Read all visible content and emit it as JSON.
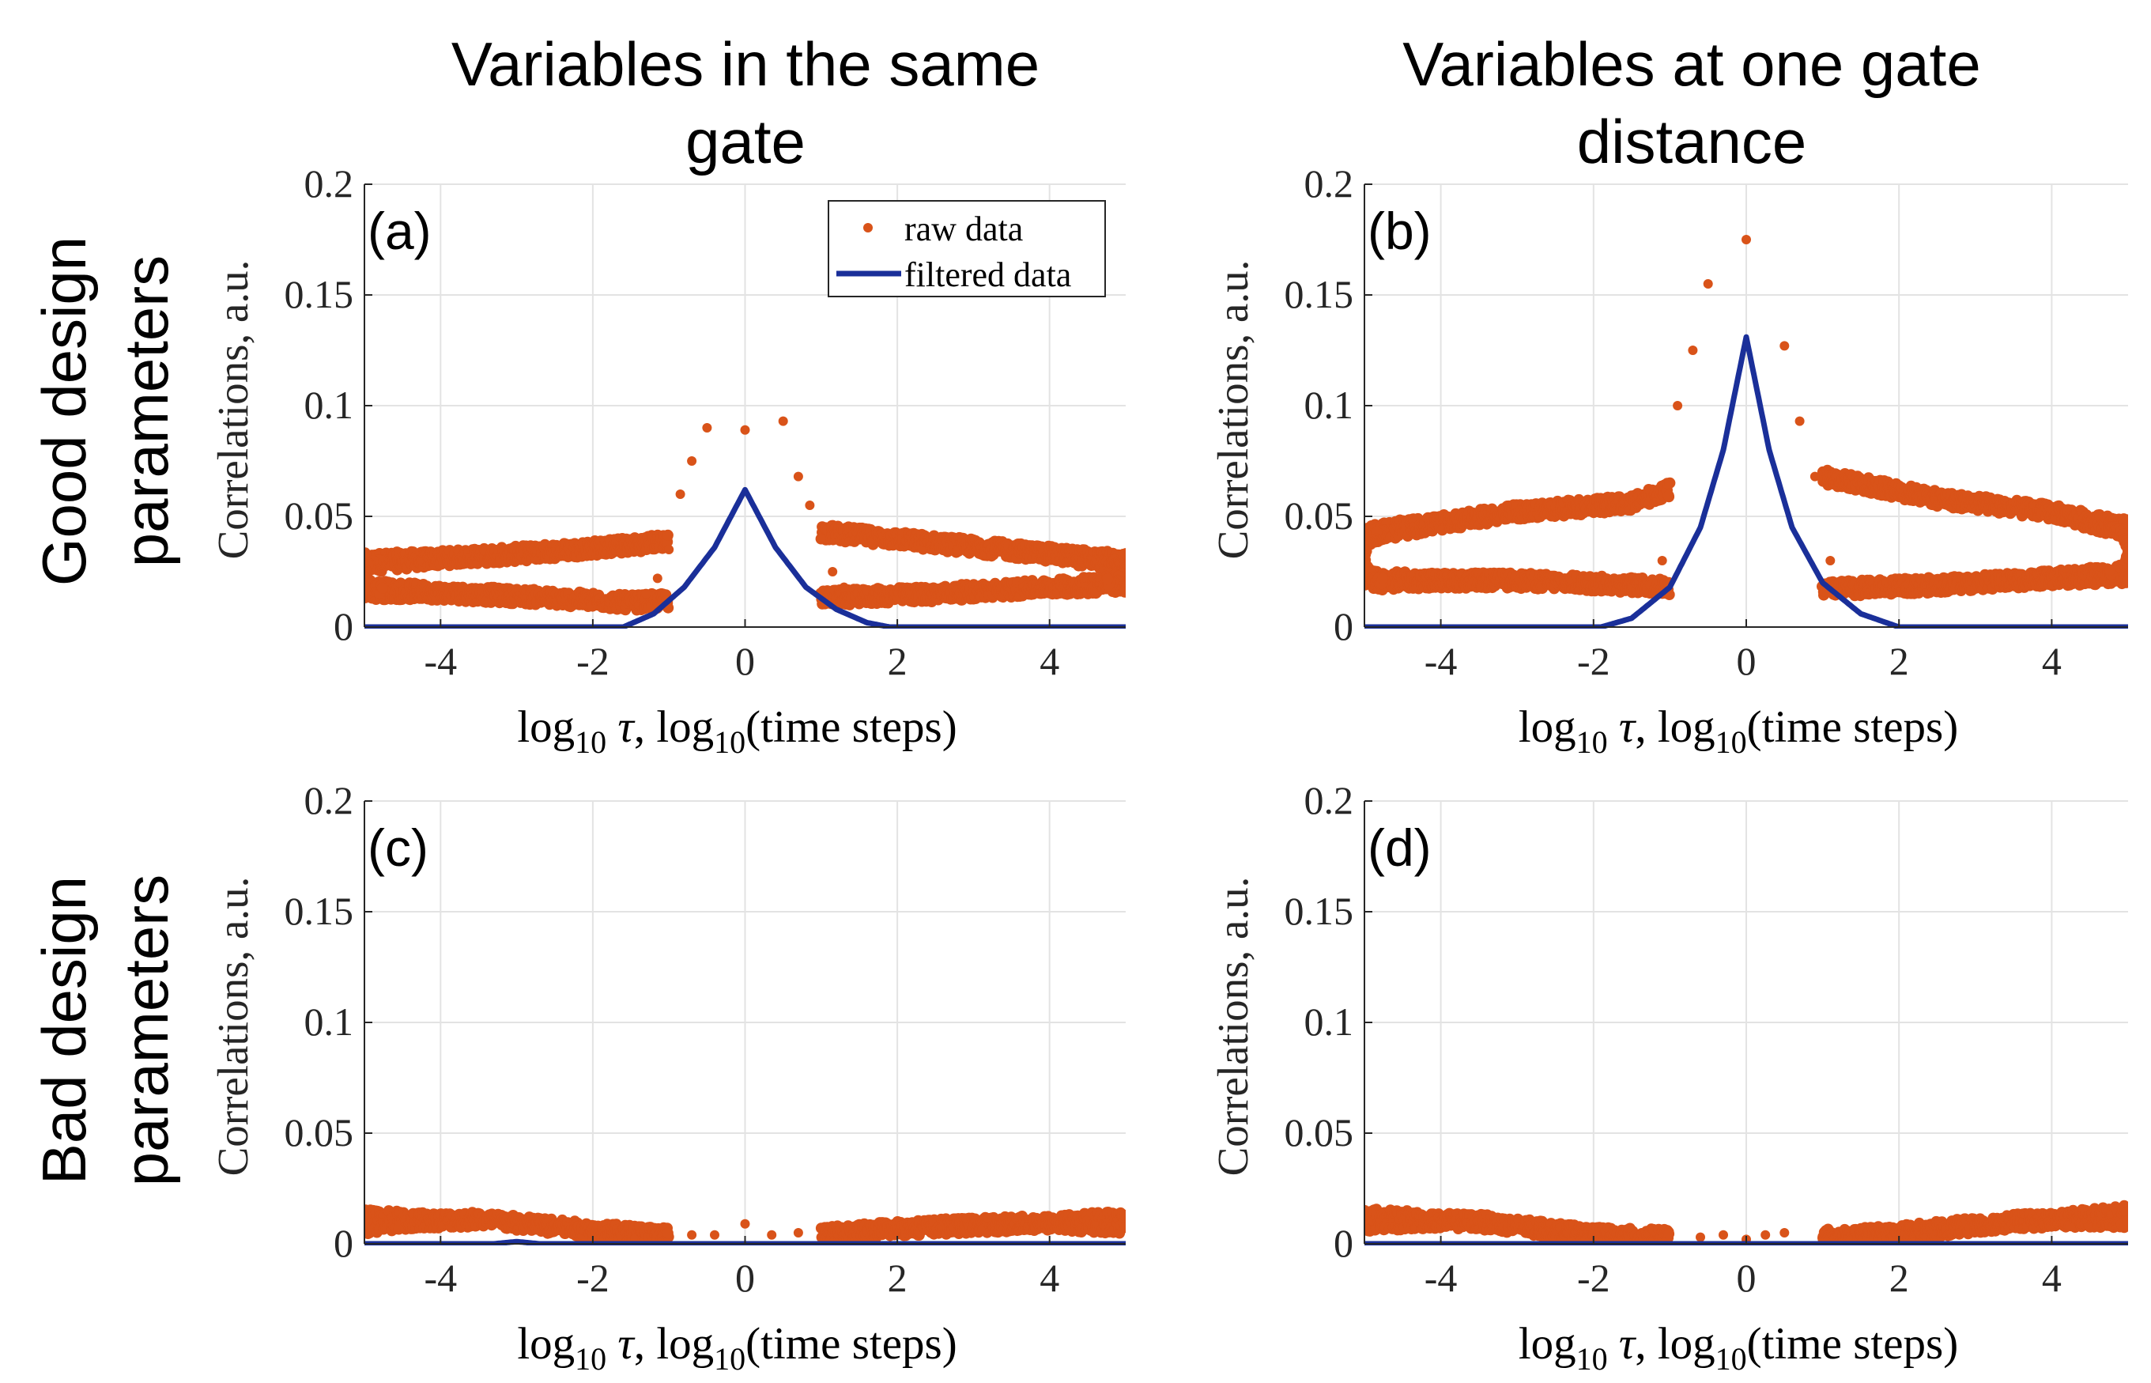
{
  "column_titles": [
    "Variables in the same gate",
    "Variables at one gate distance"
  ],
  "row_titles": [
    "Good design parameters",
    "Bad design parameters"
  ],
  "colors": {
    "raw": "#d95319",
    "filtered": "#1a2f99"
  },
  "legend": {
    "raw_label": "raw data",
    "filtered_label": "filtered data"
  },
  "xlabel": {
    "main": "log",
    "sub": "10",
    "tau": " τ",
    "rest": ",  log",
    "rest_sub": "10",
    "tail": "(time steps)"
  },
  "ylabel": "Correlations, a.u.",
  "chart_data": [
    {
      "id": "a",
      "label": "(a)",
      "type": "scatter+line",
      "xlim": [
        -5,
        5
      ],
      "ylim": [
        0,
        0.2
      ],
      "xticks": [
        -4,
        -2,
        0,
        2,
        4
      ],
      "xtick_labels": [
        "-4",
        "-2",
        "0",
        "2",
        "4"
      ],
      "yticks": [
        0,
        0.05,
        0.1,
        0.15,
        0.2
      ],
      "ytick_labels": [
        "0",
        "0.05",
        "0.1",
        "0.15",
        "0.2"
      ],
      "legend_shown": true,
      "raw_bands": [
        {
          "name": "upper",
          "x": [
            -5,
            -3,
            -1.5,
            -1
          ],
          "y": [
            0.029,
            0.033,
            0.037,
            0.039
          ]
        },
        {
          "name": "lower",
          "x": [
            -5,
            -3,
            -1.5,
            -1
          ],
          "y": [
            0.017,
            0.014,
            0.011,
            0.012
          ]
        },
        {
          "name": "upper-right",
          "x": [
            1,
            2.5,
            4,
            5
          ],
          "y": [
            0.043,
            0.038,
            0.033,
            0.029
          ]
        },
        {
          "name": "lower-right",
          "x": [
            1,
            2.5,
            4,
            5
          ],
          "y": [
            0.013,
            0.015,
            0.018,
            0.02
          ]
        }
      ],
      "raw_peak_x": [
        -1.3,
        -1.15,
        -1.0,
        -0.85,
        -0.7,
        -0.5,
        0,
        0.5,
        0.7,
        0.85,
        1.0,
        1.15,
        1.3
      ],
      "raw_peak_y": [
        0.015,
        0.022,
        0.035,
        0.06,
        0.075,
        0.09,
        0.089,
        0.093,
        0.068,
        0.055,
        0.04,
        0.025,
        0.018
      ],
      "filtered_x": [
        -5,
        -1.6,
        -1.2,
        -0.8,
        -0.4,
        0,
        0.4,
        0.8,
        1.2,
        1.6,
        1.9,
        5
      ],
      "filtered_y": [
        0,
        0,
        0.006,
        0.018,
        0.036,
        0.062,
        0.036,
        0.018,
        0.008,
        0.002,
        0,
        0
      ]
    },
    {
      "id": "b",
      "label": "(b)",
      "type": "scatter+line",
      "xlim": [
        -5,
        5
      ],
      "ylim": [
        0,
        0.2
      ],
      "xticks": [
        -4,
        -2,
        0,
        2,
        4
      ],
      "xtick_labels": [
        "-4",
        "-2",
        "0",
        "2",
        "4"
      ],
      "yticks": [
        0,
        0.05,
        0.1,
        0.15,
        0.2
      ],
      "ytick_labels": [
        "0",
        "0.05",
        "0.1",
        "0.15",
        "0.2"
      ],
      "legend_shown": false,
      "raw_bands": [
        {
          "name": "upper",
          "x": [
            -5,
            -3,
            -1.5,
            -1
          ],
          "y": [
            0.042,
            0.052,
            0.056,
            0.062
          ]
        },
        {
          "name": "lower",
          "x": [
            -5,
            -3,
            -1.5,
            -1
          ],
          "y": [
            0.021,
            0.021,
            0.019,
            0.018
          ]
        },
        {
          "name": "upper-right",
          "x": [
            1,
            2.5,
            4,
            5
          ],
          "y": [
            0.068,
            0.058,
            0.052,
            0.044
          ]
        },
        {
          "name": "lower-right",
          "x": [
            1,
            2.5,
            4,
            5
          ],
          "y": [
            0.017,
            0.019,
            0.022,
            0.024
          ]
        }
      ],
      "raw_peak_x": [
        -1.1,
        -0.9,
        -0.7,
        -0.5,
        0,
        0.5,
        0.7,
        0.9,
        1.1
      ],
      "raw_peak_y": [
        0.03,
        0.1,
        0.125,
        0.155,
        0.175,
        0.127,
        0.093,
        0.068,
        0.03
      ],
      "filtered_x": [
        -5,
        -1.9,
        -1.5,
        -1.0,
        -0.6,
        -0.3,
        0,
        0.3,
        0.6,
        1.0,
        1.5,
        2.0,
        5
      ],
      "filtered_y": [
        0,
        0,
        0.004,
        0.018,
        0.045,
        0.08,
        0.131,
        0.08,
        0.045,
        0.02,
        0.006,
        0,
        0
      ]
    },
    {
      "id": "c",
      "label": "(c)",
      "type": "scatter+line",
      "xlim": [
        -5,
        5
      ],
      "ylim": [
        0,
        0.2
      ],
      "xticks": [
        -4,
        -2,
        0,
        2,
        4
      ],
      "xtick_labels": [
        "-4",
        "-2",
        "0",
        "2",
        "4"
      ],
      "yticks": [
        0,
        0.05,
        0.1,
        0.15,
        0.2
      ],
      "ytick_labels": [
        "0",
        "0.05",
        "0.1",
        "0.15",
        "0.2"
      ],
      "legend_shown": false,
      "raw_bands": [
        {
          "name": "left",
          "x": [
            -5,
            -3.5,
            -2,
            -1
          ],
          "y": [
            0.01,
            0.011,
            0.006,
            0.004
          ]
        },
        {
          "name": "right",
          "x": [
            1,
            2,
            3.5,
            5
          ],
          "y": [
            0.004,
            0.007,
            0.009,
            0.01
          ]
        }
      ],
      "raw_peak_x": [
        -0.7,
        -0.4,
        0,
        0.35,
        0.7
      ],
      "raw_peak_y": [
        0.004,
        0.004,
        0.009,
        0.004,
        0.005
      ],
      "filtered_x": [
        -5,
        -3.3,
        -3,
        -2.7,
        5
      ],
      "filtered_y": [
        0,
        0,
        0.001,
        0,
        0
      ]
    },
    {
      "id": "d",
      "label": "(d)",
      "type": "scatter+line",
      "xlim": [
        -5,
        5
      ],
      "ylim": [
        0,
        0.2
      ],
      "xticks": [
        -4,
        -2,
        0,
        2,
        4
      ],
      "xtick_labels": [
        "-4",
        "-2",
        "0",
        "2",
        "4"
      ],
      "yticks": [
        0,
        0.05,
        0.1,
        0.15,
        0.2
      ],
      "ytick_labels": [
        "0",
        "0.05",
        "0.1",
        "0.15",
        "0.2"
      ],
      "legend_shown": false,
      "raw_bands": [
        {
          "name": "left",
          "x": [
            -5,
            -3.5,
            -2,
            -1
          ],
          "y": [
            0.011,
            0.01,
            0.004,
            0.003
          ]
        },
        {
          "name": "right",
          "x": [
            1,
            2,
            3.5,
            5
          ],
          "y": [
            0.003,
            0.005,
            0.01,
            0.012
          ]
        }
      ],
      "raw_peak_x": [
        -0.6,
        -0.3,
        0,
        0.25,
        0.5
      ],
      "raw_peak_y": [
        0.003,
        0.004,
        0.002,
        0.004,
        0.005
      ],
      "filtered_x": [
        -5,
        5
      ],
      "filtered_y": [
        0,
        0
      ]
    }
  ]
}
